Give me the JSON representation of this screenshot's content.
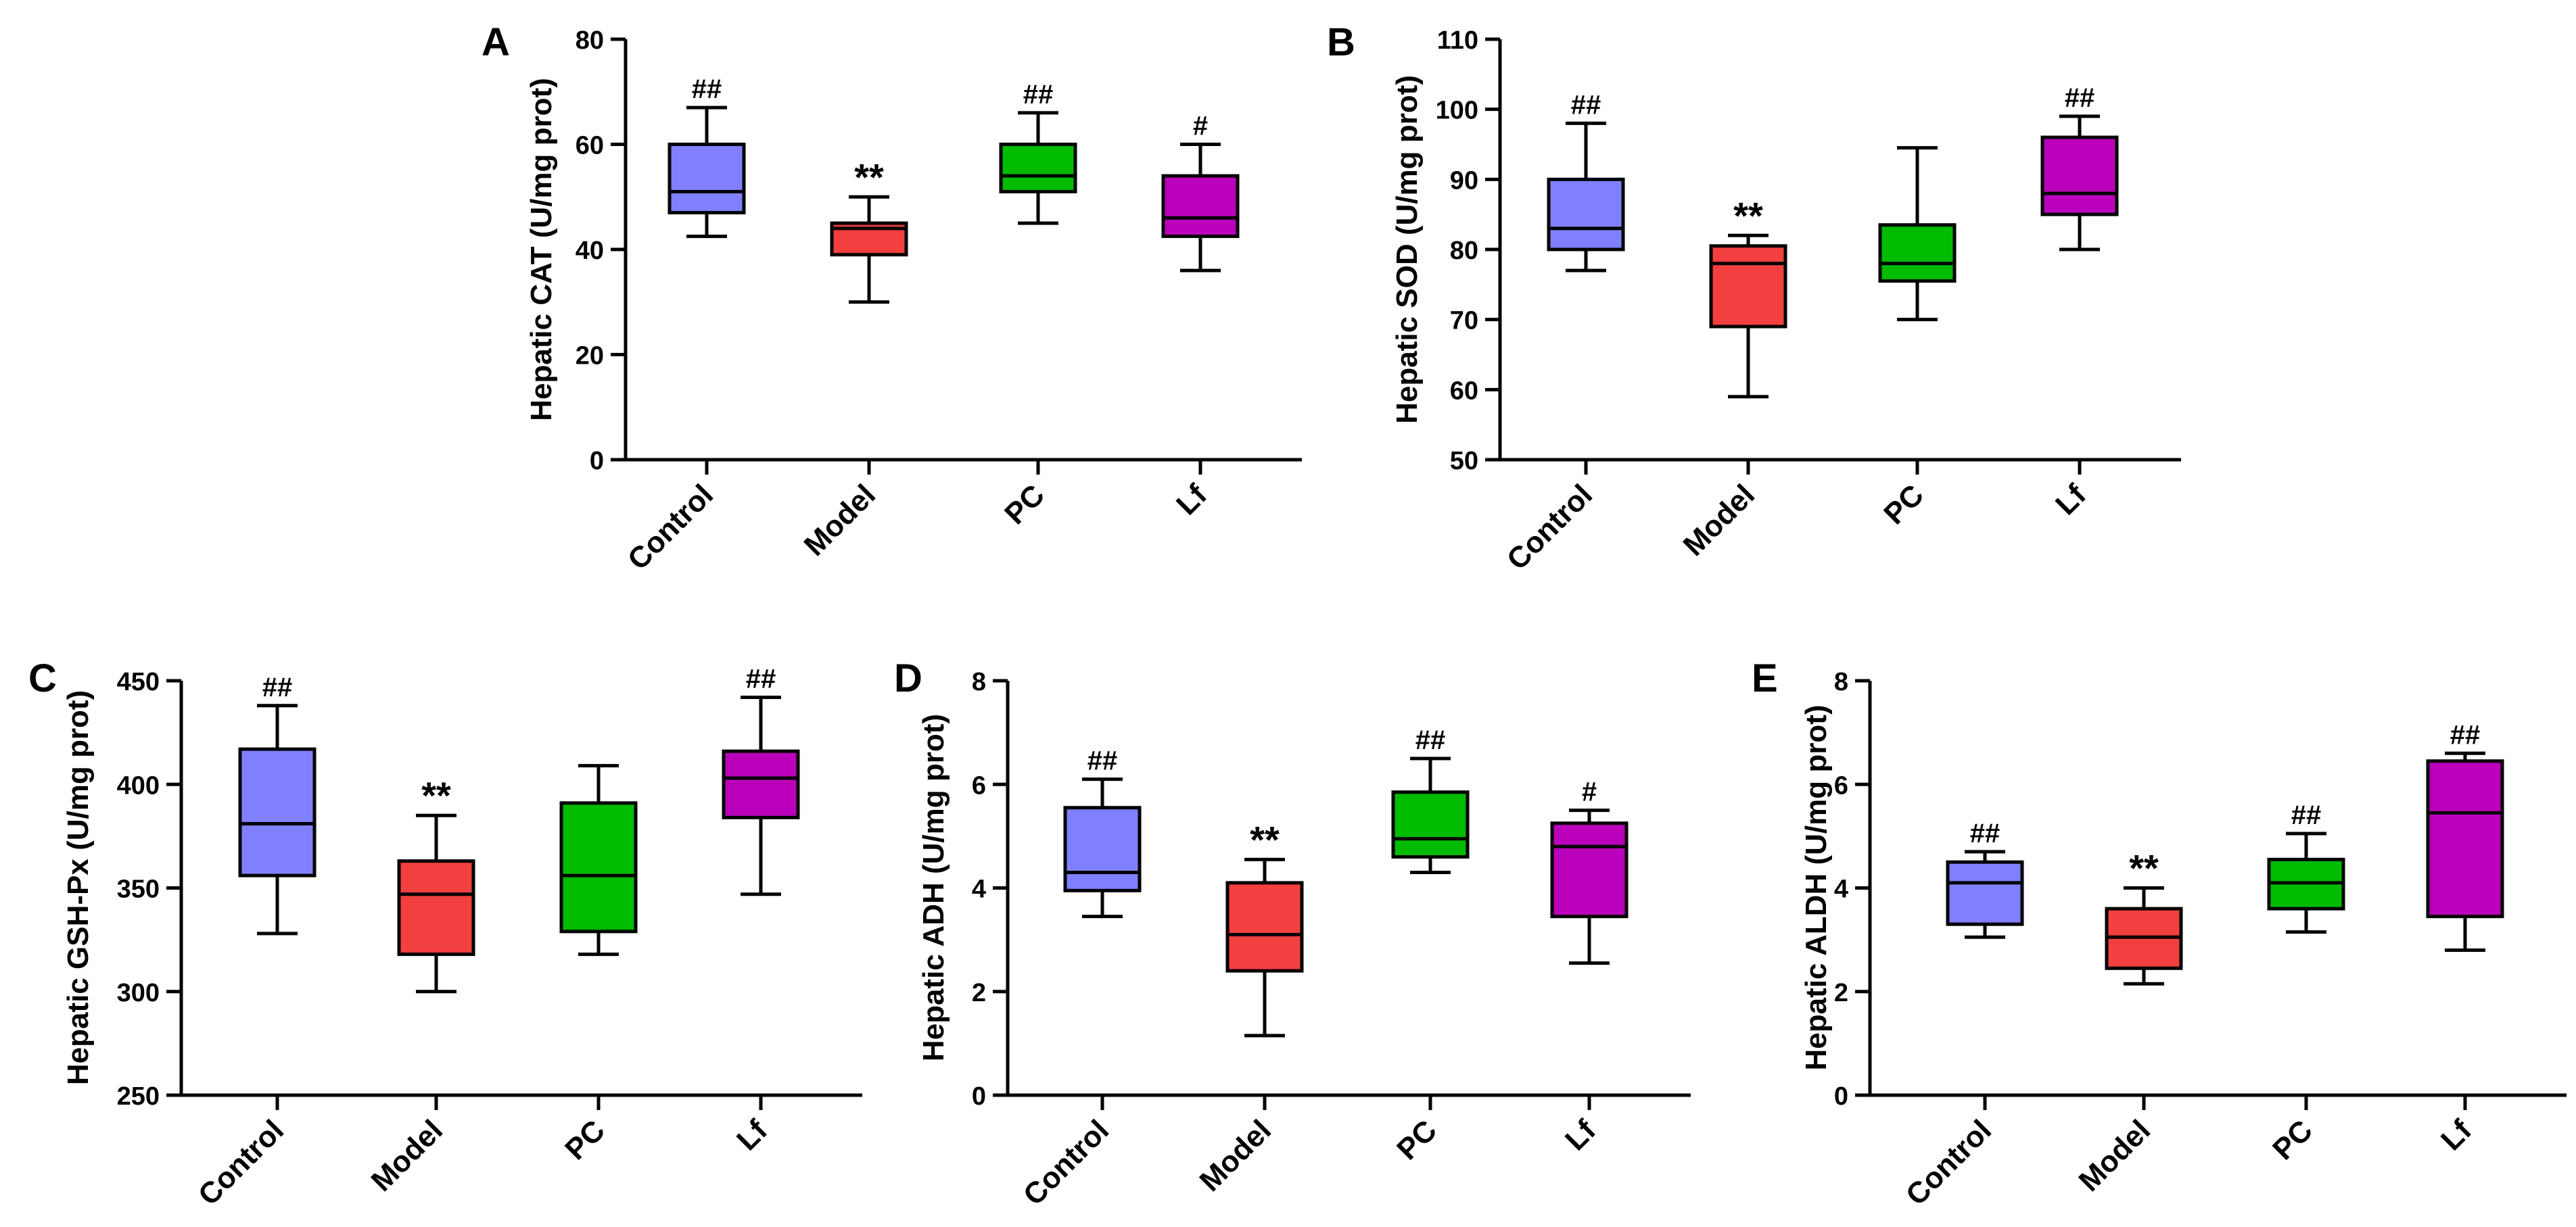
{
  "chart_data": [
    {
      "panel": "A",
      "type": "box",
      "ylabel": "Hepatic CAT (U/mg prot)",
      "ylim": [
        0,
        80
      ],
      "yticks": [
        0,
        20,
        40,
        60,
        80
      ],
      "categories": [
        "Control",
        "Model",
        "PC",
        "Lf"
      ],
      "boxes": [
        {
          "min": 42.5,
          "q1": 47,
          "median": 51,
          "q3": 60,
          "max": 67,
          "sig": "##"
        },
        {
          "min": 30,
          "q1": 39,
          "median": 44,
          "q3": 45,
          "max": 50,
          "sig": "**"
        },
        {
          "min": 45,
          "q1": 51,
          "median": 54,
          "q3": 60,
          "max": 66,
          "sig": "##"
        },
        {
          "min": 36,
          "q1": 42.5,
          "median": 46,
          "q3": 54,
          "max": 60,
          "sig": "#"
        }
      ]
    },
    {
      "panel": "B",
      "type": "box",
      "ylabel": "Hepatic SOD (U/mg prot)",
      "ylim": [
        50,
        110
      ],
      "yticks": [
        50,
        60,
        70,
        80,
        90,
        100,
        110
      ],
      "categories": [
        "Control",
        "Model",
        "PC",
        "Lf"
      ],
      "boxes": [
        {
          "min": 77,
          "q1": 80,
          "median": 83,
          "q3": 90,
          "max": 98,
          "sig": "##"
        },
        {
          "min": 59,
          "q1": 69,
          "median": 78,
          "q3": 80.5,
          "max": 82,
          "sig": "**"
        },
        {
          "min": 70,
          "q1": 75.5,
          "median": 78,
          "q3": 83.5,
          "max": 94.5,
          "sig": ""
        },
        {
          "min": 80,
          "q1": 85,
          "median": 88,
          "q3": 96,
          "max": 99,
          "sig": "##"
        }
      ]
    },
    {
      "panel": "C",
      "type": "box",
      "ylabel": "Hepatic GSH-Px (U/mg prot)",
      "ylim": [
        250,
        450
      ],
      "yticks": [
        250,
        300,
        350,
        400,
        450
      ],
      "categories": [
        "Control",
        "Model",
        "PC",
        "Lf"
      ],
      "boxes": [
        {
          "min": 328,
          "q1": 356,
          "median": 381,
          "q3": 417,
          "max": 438,
          "sig": "##"
        },
        {
          "min": 300,
          "q1": 318,
          "median": 347,
          "q3": 363,
          "max": 385,
          "sig": "**"
        },
        {
          "min": 318,
          "q1": 329,
          "median": 356,
          "q3": 391,
          "max": 409,
          "sig": ""
        },
        {
          "min": 347,
          "q1": 384,
          "median": 403,
          "q3": 416,
          "max": 442,
          "sig": "##"
        }
      ]
    },
    {
      "panel": "D",
      "type": "box",
      "ylabel": "Hepatic ADH (U/mg prot)",
      "ylim": [
        0,
        8
      ],
      "yticks": [
        0,
        2,
        4,
        6,
        8
      ],
      "categories": [
        "Control",
        "Model",
        "PC",
        "Lf"
      ],
      "boxes": [
        {
          "min": 3.45,
          "q1": 3.95,
          "median": 4.3,
          "q3": 5.55,
          "max": 6.1,
          "sig": "##"
        },
        {
          "min": 1.15,
          "q1": 2.4,
          "median": 3.1,
          "q3": 4.1,
          "max": 4.55,
          "sig": "**"
        },
        {
          "min": 4.3,
          "q1": 4.6,
          "median": 4.95,
          "q3": 5.85,
          "max": 6.5,
          "sig": "##"
        },
        {
          "min": 2.55,
          "q1": 3.45,
          "median": 4.8,
          "q3": 5.25,
          "max": 5.5,
          "sig": "#"
        }
      ]
    },
    {
      "panel": "E",
      "type": "box",
      "ylabel": "Hepatic ALDH (U/mg prot)",
      "ylim": [
        0,
        8
      ],
      "yticks": [
        0,
        2,
        4,
        6,
        8
      ],
      "categories": [
        "Control",
        "Model",
        "PC",
        "Lf"
      ],
      "boxes": [
        {
          "min": 3.05,
          "q1": 3.3,
          "median": 4.1,
          "q3": 4.5,
          "max": 4.7,
          "sig": "##"
        },
        {
          "min": 2.15,
          "q1": 2.45,
          "median": 3.05,
          "q3": 3.6,
          "max": 4.0,
          "sig": "**"
        },
        {
          "min": 3.15,
          "q1": 3.6,
          "median": 4.1,
          "q3": 4.55,
          "max": 5.05,
          "sig": "##"
        },
        {
          "min": 2.8,
          "q1": 3.45,
          "median": 5.45,
          "q3": 6.45,
          "max": 6.6,
          "sig": "##"
        }
      ]
    }
  ],
  "colors": {
    "Control": "#8080ff",
    "Model": "#f23f3f",
    "PC": "#00bb00",
    "Lf": "#bb00bb"
  }
}
